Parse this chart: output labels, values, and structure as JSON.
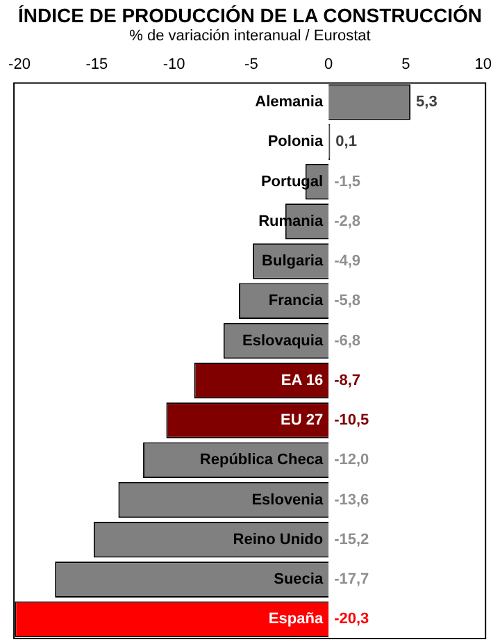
{
  "chart_data": {
    "type": "bar",
    "orientation": "horizontal",
    "title": "ÍNDICE DE PRODUCCIÓN DE LA CONSTRUCCIÓN",
    "subtitle": "% de variación interanual / Eurostat",
    "categories": [
      "Alemania",
      "Polonia",
      "Portugal",
      "Rumania",
      "Bulgaria",
      "Francia",
      "Eslovaquia",
      "EA 16",
      "EU 27",
      "República Checa",
      "Eslovenia",
      "Reino Unido",
      "Suecia",
      "España"
    ],
    "values": [
      5.3,
      0.1,
      -1.5,
      -2.8,
      -4.9,
      -5.8,
      -6.8,
      -8.7,
      -10.5,
      -12.0,
      -13.6,
      -15.2,
      -17.7,
      -20.3
    ],
    "colors": [
      "#808080",
      "#808080",
      "#808080",
      "#808080",
      "#808080",
      "#808080",
      "#808080",
      "#800000",
      "#800000",
      "#808080",
      "#808080",
      "#808080",
      "#808080",
      "#ff0000"
    ],
    "value_labels": [
      "5,3",
      "0,1",
      "-1,5",
      "-2,8",
      "-4,9",
      "-5,8",
      "-6,8",
      "-8,7",
      "-10,5",
      "-12,0",
      "-13,6",
      "-15,2",
      "-17,7",
      "-20,3"
    ],
    "xlim": [
      -20.4,
      10.2
    ],
    "xticks": [
      -20,
      -15,
      -10,
      -5,
      0,
      5,
      10
    ],
    "grid": false,
    "legend": false
  }
}
